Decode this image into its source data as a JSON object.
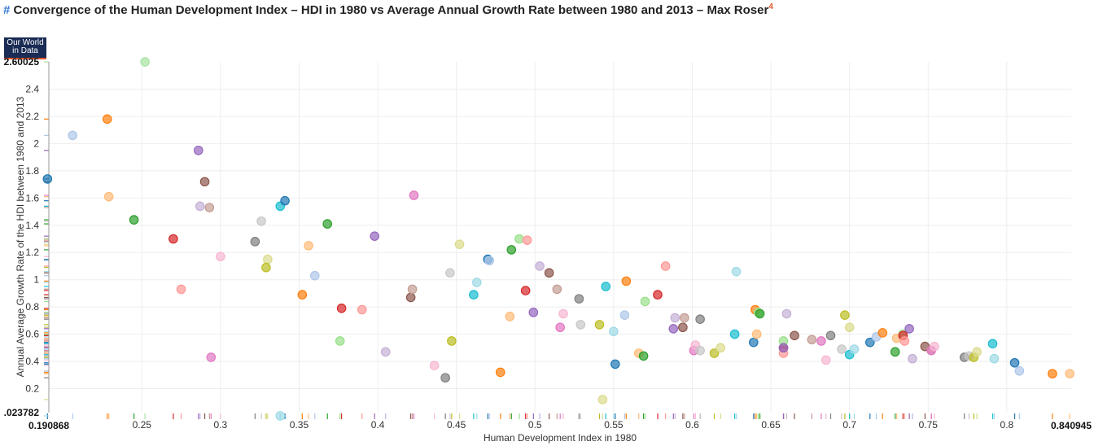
{
  "header": {
    "title_hash": "#",
    "title": "Convergence of the Human Development Index – HDI in 1980 vs Average Annual Growth Rate between 1980 and 2013 – Max Roser",
    "title_ref": "4"
  },
  "logo": {
    "line1": "Our World",
    "line2": "in Data"
  },
  "chart_data": {
    "type": "scatter",
    "xlabel": "Human Development Index in 1980",
    "ylabel": "Annual Average Growth Rate of the HDI between 1980 and 2013",
    "xlim": [
      0.190868,
      0.840945
    ],
    "ylim": [
      0.023782,
      2.60025
    ],
    "x_range_labels": [
      "0.190868",
      "0.840945"
    ],
    "y_range_labels": [
      ".023782",
      "2.60025"
    ],
    "x_ticks": [
      "0.25",
      "0.3",
      "0.35",
      "0.4",
      "0.45",
      "0.5",
      "0.55",
      "0.6",
      "0.65",
      "0.7",
      "0.75",
      "0.8"
    ],
    "y_ticks": [
      "0.2",
      "0.4",
      "0.6",
      "0.8",
      "1",
      "1.2",
      "1.4",
      "1.6",
      "1.8",
      "2",
      "2.2",
      "2.4"
    ],
    "grid": true,
    "legend": "none",
    "points": [
      [
        0.252,
        2.6,
        "#a6e3a1"
      ],
      [
        0.206,
        2.06,
        "#aec7e8"
      ],
      [
        0.228,
        2.18,
        "#ff7f0e"
      ],
      [
        0.286,
        1.95,
        "#9467bd"
      ],
      [
        0.19,
        1.74,
        "#1f77b4"
      ],
      [
        0.29,
        1.72,
        "#8c564b"
      ],
      [
        0.229,
        1.61,
        "#ffbb78"
      ],
      [
        0.287,
        1.54,
        "#c5b0d5"
      ],
      [
        0.293,
        1.53,
        "#c49c94"
      ],
      [
        0.245,
        1.44,
        "#2ca02c"
      ],
      [
        0.27,
        1.3,
        "#d62728"
      ],
      [
        0.3,
        1.17,
        "#f7b6d2"
      ],
      [
        0.275,
        0.93,
        "#ff9896"
      ],
      [
        0.294,
        0.43,
        "#e377c2"
      ],
      [
        0.322,
        1.28,
        "#7f7f7f"
      ],
      [
        0.326,
        1.43,
        "#c7c7c7"
      ],
      [
        0.338,
        1.54,
        "#17becf"
      ],
      [
        0.341,
        1.58,
        "#1f77b4"
      ],
      [
        0.33,
        1.15,
        "#dbdb8d"
      ],
      [
        0.329,
        1.09,
        "#bcbd22"
      ],
      [
        0.356,
        1.25,
        "#ffbb78"
      ],
      [
        0.36,
        1.03,
        "#aec7e8"
      ],
      [
        0.352,
        0.89,
        "#ff7f0e"
      ],
      [
        0.368,
        1.41,
        "#2ca02c"
      ],
      [
        0.377,
        0.79,
        "#d62728"
      ],
      [
        0.39,
        0.78,
        "#ff9896"
      ],
      [
        0.376,
        0.55,
        "#98df8a"
      ],
      [
        0.398,
        1.32,
        "#9467bd"
      ],
      [
        0.405,
        0.47,
        "#c5b0d5"
      ],
      [
        0.338,
        0.0,
        "#9edae5"
      ],
      [
        0.421,
        0.87,
        "#8c564b"
      ],
      [
        0.422,
        0.93,
        "#c49c94"
      ],
      [
        0.423,
        1.62,
        "#e377c2"
      ],
      [
        0.436,
        0.37,
        "#f7b6d2"
      ],
      [
        0.443,
        0.28,
        "#7f7f7f"
      ],
      [
        0.446,
        1.05,
        "#c7c7c7"
      ],
      [
        0.452,
        1.26,
        "#dbdb8d"
      ],
      [
        0.447,
        0.55,
        "#bcbd22"
      ],
      [
        0.461,
        0.89,
        "#17becf"
      ],
      [
        0.463,
        0.98,
        "#9edae5"
      ],
      [
        0.47,
        1.15,
        "#1f77b4"
      ],
      [
        0.471,
        1.14,
        "#aec7e8"
      ],
      [
        0.478,
        0.32,
        "#ff7f0e"
      ],
      [
        0.484,
        0.73,
        "#ffbb78"
      ],
      [
        0.49,
        1.3,
        "#98df8a"
      ],
      [
        0.485,
        1.22,
        "#2ca02c"
      ],
      [
        0.495,
        1.29,
        "#ff9896"
      ],
      [
        0.494,
        0.92,
        "#d62728"
      ],
      [
        0.499,
        0.76,
        "#9467bd"
      ],
      [
        0.503,
        1.1,
        "#c5b0d5"
      ],
      [
        0.509,
        1.05,
        "#8c564b"
      ],
      [
        0.514,
        0.93,
        "#c49c94"
      ],
      [
        0.516,
        0.65,
        "#e377c2"
      ],
      [
        0.518,
        0.75,
        "#f7b6d2"
      ],
      [
        0.528,
        0.86,
        "#7f7f7f"
      ],
      [
        0.529,
        0.67,
        "#c7c7c7"
      ],
      [
        0.541,
        0.67,
        "#bcbd22"
      ],
      [
        0.543,
        0.12,
        "#dbdb8d"
      ],
      [
        0.545,
        0.95,
        "#17becf"
      ],
      [
        0.55,
        0.62,
        "#9edae5"
      ],
      [
        0.551,
        0.38,
        "#1f77b4"
      ],
      [
        0.557,
        0.74,
        "#aec7e8"
      ],
      [
        0.558,
        0.99,
        "#ff7f0e"
      ],
      [
        0.566,
        0.46,
        "#ffbb78"
      ],
      [
        0.57,
        0.84,
        "#98df8a"
      ],
      [
        0.569,
        0.44,
        "#2ca02c"
      ],
      [
        0.578,
        0.89,
        "#d62728"
      ],
      [
        0.583,
        1.1,
        "#ff9896"
      ],
      [
        0.588,
        0.64,
        "#9467bd"
      ],
      [
        0.589,
        0.72,
        "#c5b0d5"
      ],
      [
        0.594,
        0.65,
        "#8c564b"
      ],
      [
        0.595,
        0.72,
        "#c49c94"
      ],
      [
        0.601,
        0.48,
        "#e377c2"
      ],
      [
        0.602,
        0.52,
        "#f7b6d2"
      ],
      [
        0.605,
        0.71,
        "#7f7f7f"
      ],
      [
        0.605,
        0.48,
        "#c7c7c7"
      ],
      [
        0.614,
        0.46,
        "#bcbd22"
      ],
      [
        0.618,
        0.5,
        "#dbdb8d"
      ],
      [
        0.627,
        0.6,
        "#17becf"
      ],
      [
        0.628,
        1.06,
        "#9edae5"
      ],
      [
        0.639,
        0.54,
        "#1f77b4"
      ],
      [
        0.641,
        0.6,
        "#ffbb78"
      ],
      [
        0.64,
        0.78,
        "#ff7f0e"
      ],
      [
        0.642,
        0.76,
        "#98df8a"
      ],
      [
        0.643,
        0.75,
        "#2ca02c"
      ],
      [
        0.658,
        0.5,
        "#d62728"
      ],
      [
        0.658,
        0.46,
        "#ff9896"
      ],
      [
        0.658,
        0.55,
        "#98df8a"
      ],
      [
        0.66,
        0.75,
        "#c5b0d5"
      ],
      [
        0.658,
        0.5,
        "#9467bd"
      ],
      [
        0.665,
        0.59,
        "#8c564b"
      ],
      [
        0.676,
        0.56,
        "#c49c94"
      ],
      [
        0.682,
        0.55,
        "#e377c2"
      ],
      [
        0.685,
        0.41,
        "#f7b6d2"
      ],
      [
        0.688,
        0.59,
        "#7f7f7f"
      ],
      [
        0.695,
        0.49,
        "#c7c7c7"
      ],
      [
        0.697,
        0.74,
        "#bcbd22"
      ],
      [
        0.7,
        0.65,
        "#dbdb8d"
      ],
      [
        0.7,
        0.45,
        "#17becf"
      ],
      [
        0.703,
        0.49,
        "#9edae5"
      ],
      [
        0.713,
        0.54,
        "#1f77b4"
      ],
      [
        0.717,
        0.58,
        "#aec7e8"
      ],
      [
        0.721,
        0.61,
        "#ff7f0e"
      ],
      [
        0.73,
        0.57,
        "#ffbb78"
      ],
      [
        0.729,
        0.47,
        "#2ca02c"
      ],
      [
        0.734,
        0.6,
        "#98df8a"
      ],
      [
        0.734,
        0.59,
        "#d62728"
      ],
      [
        0.735,
        0.55,
        "#ff9896"
      ],
      [
        0.738,
        0.64,
        "#9467bd"
      ],
      [
        0.74,
        0.42,
        "#c5b0d5"
      ],
      [
        0.748,
        0.51,
        "#8c564b"
      ],
      [
        0.752,
        0.48,
        "#c49c94"
      ],
      [
        0.752,
        0.48,
        "#e377c2"
      ],
      [
        0.754,
        0.51,
        "#f7b6d2"
      ],
      [
        0.773,
        0.43,
        "#7f7f7f"
      ],
      [
        0.776,
        0.44,
        "#c7c7c7"
      ],
      [
        0.779,
        0.43,
        "#bcbd22"
      ],
      [
        0.781,
        0.47,
        "#dbdb8d"
      ],
      [
        0.791,
        0.53,
        "#17becf"
      ],
      [
        0.792,
        0.42,
        "#9edae5"
      ],
      [
        0.805,
        0.39,
        "#1f77b4"
      ],
      [
        0.808,
        0.33,
        "#aec7e8"
      ],
      [
        0.829,
        0.31,
        "#ff7f0e"
      ],
      [
        0.84,
        0.31,
        "#ffbb78"
      ]
    ]
  }
}
